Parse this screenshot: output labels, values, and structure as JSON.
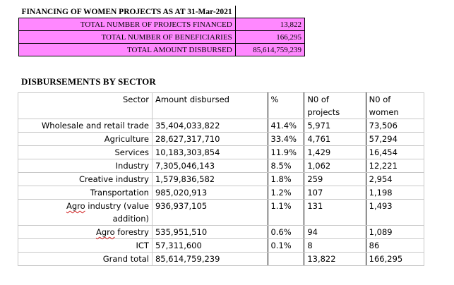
{
  "summary": {
    "title": "FINANCING OF WOMEN PROJECTS AS AT 31-Mar-2021",
    "rows": [
      {
        "label": "TOTAL NUMBER OF PROJECTS FINANCED",
        "value": "13,822"
      },
      {
        "label": "TOTAL NUMBER OF BENEFICIARIES",
        "value": "166,295"
      },
      {
        "label": "TOTAL AMOUNT DISBURSED",
        "value": "85,614,759,239"
      }
    ],
    "highlight_color": "#ff88ff"
  },
  "section_title": "DISBURSEMENTS BY SECTOR",
  "table": {
    "headers": {
      "sector": "Sector",
      "amount": "Amount disbursed",
      "pct": "%",
      "projects_line1": "N0 of",
      "projects_line2": "projects",
      "women_line1": "N0 of",
      "women_line2": "women"
    },
    "rows": [
      {
        "sector": "Wholesale and retail trade",
        "amount": "35,404,033,822",
        "pct": "41.4%",
        "projects": "5,971",
        "women": "73,506"
      },
      {
        "sector": "Agriculture",
        "amount": "28,627,317,710",
        "pct": "33.4%",
        "projects": "4,761",
        "women": "57,294"
      },
      {
        "sector": "Services",
        "amount": "10,183,303,854",
        "pct": "11.9%",
        "projects": "1,429",
        "women": "16,454"
      },
      {
        "sector": "Industry",
        "amount": "7,305,046,143",
        "pct": "8.5%",
        "projects": "1,062",
        "women": "12,221"
      },
      {
        "sector": "Creative industry",
        "amount": "1,579,836,582",
        "pct": "1.8%",
        "projects": "259",
        "women": "2,954"
      },
      {
        "sector": "Transportation",
        "amount": "985,020,913",
        "pct": "1.2%",
        "projects": "107",
        "women": "1,198"
      },
      {
        "sector_word1": "Agro",
        "sector_rest": " industry (value",
        "sector_line2": "addition)",
        "amount": "936,937,105",
        "pct": "1.1%",
        "projects": "131",
        "women": "1,493"
      },
      {
        "sector_word1": "Agro",
        "sector_rest": " forestry",
        "amount": "535,951,510",
        "pct": "0.6%",
        "projects": "94",
        "women": "1,089"
      },
      {
        "sector": "ICT",
        "amount": "57,311,600",
        "pct": "0.1%",
        "projects": "8",
        "women": "86"
      }
    ],
    "total": {
      "label": "Grand total",
      "amount": "85,614,759,239",
      "pct": "",
      "projects": "13,822",
      "women": "166,295"
    }
  }
}
